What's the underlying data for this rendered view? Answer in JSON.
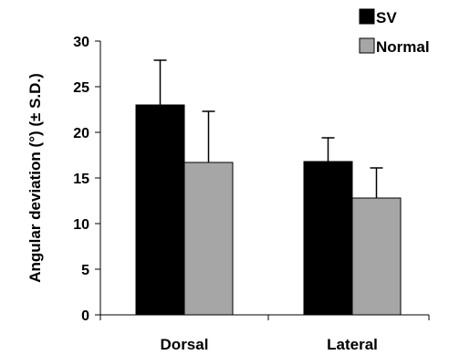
{
  "chart_data": {
    "type": "bar",
    "categories": [
      "Dorsal",
      "Lateral"
    ],
    "series": [
      {
        "name": "SV",
        "values": [
          23.0,
          16.8
        ],
        "errors": [
          4.9,
          2.6
        ],
        "color": "#000000"
      },
      {
        "name": "Normal",
        "values": [
          16.7,
          12.8
        ],
        "errors": [
          5.6,
          3.3
        ],
        "color": "#a6a6a6"
      }
    ],
    "ylabel": "Angular deviation (°) (± S.D.)",
    "ylim": [
      0,
      30
    ],
    "yticks": [
      0,
      5,
      10,
      15,
      20,
      25,
      30
    ],
    "legend_position": "top-right",
    "grid": false
  }
}
